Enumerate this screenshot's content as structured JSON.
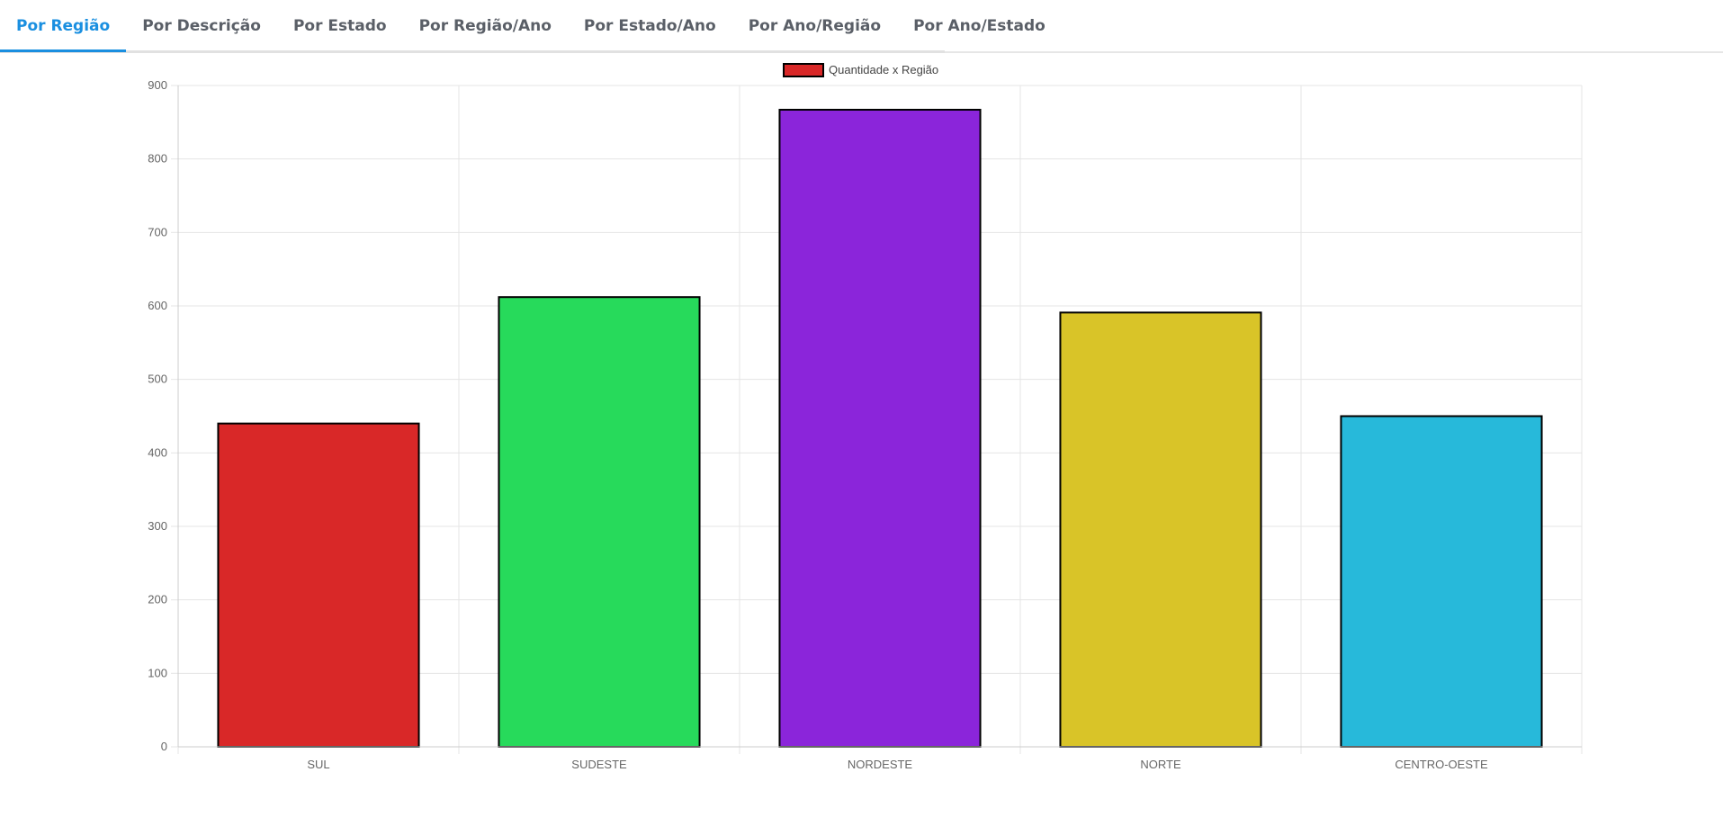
{
  "tabs": [
    {
      "label": "Por Região",
      "active": true
    },
    {
      "label": "Por Descrição",
      "active": false
    },
    {
      "label": "Por Estado",
      "active": false
    },
    {
      "label": "Por Região/Ano",
      "active": false
    },
    {
      "label": "Por Estado/Ano",
      "active": false
    },
    {
      "label": "Por Ano/Região",
      "active": false
    },
    {
      "label": "Por Ano/Estado",
      "active": false
    }
  ],
  "colors": {
    "tab_active": "#1a8fe0",
    "tab_inactive": "#5a5f67",
    "grid": "#e5e5e5",
    "bar_border": "#000000"
  },
  "chart_data": {
    "type": "bar",
    "categories": [
      "SUL",
      "SUDESTE",
      "NORDESTE",
      "NORTE",
      "CENTRO-OESTE"
    ],
    "series": [
      {
        "name": "Quantidade x Região",
        "values": [
          440,
          612,
          867,
          591,
          450
        ],
        "colors": [
          "#d92828",
          "#27da5b",
          "#8b25da",
          "#d9c428",
          "#27b9da"
        ],
        "legend_color": "#d92828"
      }
    ],
    "yticks": [
      "0",
      "100",
      "200",
      "300",
      "400",
      "500",
      "600",
      "700",
      "800",
      "900"
    ],
    "ylim": [
      0,
      900
    ],
    "grid": true,
    "legend_position": "top-center"
  }
}
